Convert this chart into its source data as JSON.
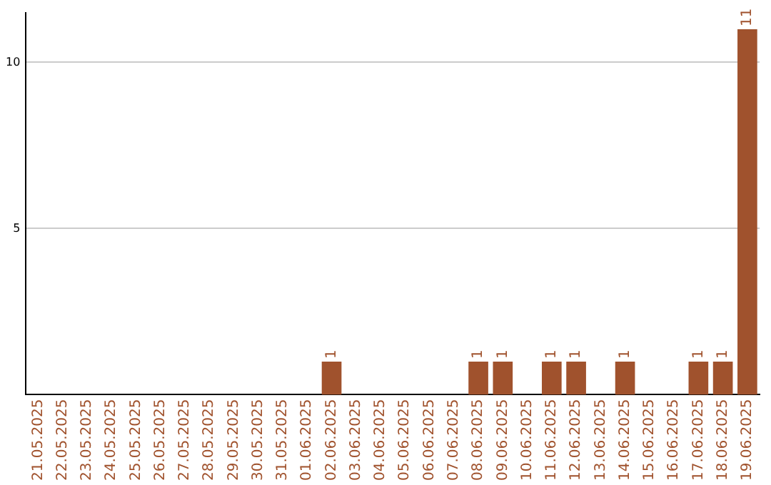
{
  "chart_data": {
    "type": "bar",
    "categories": [
      "21.05.2025",
      "22.05.2025",
      "23.05.2025",
      "24.05.2025",
      "25.05.2025",
      "26.05.2025",
      "27.05.2025",
      "28.05.2025",
      "29.05.2025",
      "30.05.2025",
      "31.05.2025",
      "01.06.2025",
      "02.06.2025",
      "03.06.2025",
      "04.06.2025",
      "05.06.2025",
      "06.06.2025",
      "07.06.2025",
      "08.06.2025",
      "09.06.2025",
      "10.06.2025",
      "11.06.2025",
      "12.06.2025",
      "13.06.2025",
      "14.06.2025",
      "15.06.2025",
      "16.06.2025",
      "17.06.2025",
      "18.06.2025",
      "19.06.2025"
    ],
    "values": [
      null,
      null,
      null,
      null,
      null,
      null,
      null,
      null,
      null,
      null,
      null,
      null,
      1,
      null,
      null,
      null,
      null,
      null,
      1,
      1,
      null,
      1,
      1,
      null,
      1,
      null,
      null,
      1,
      1,
      11
    ],
    "value_labels": [
      null,
      null,
      null,
      null,
      null,
      null,
      null,
      null,
      null,
      null,
      null,
      null,
      "1",
      null,
      null,
      null,
      null,
      null,
      "1",
      "1",
      null,
      "1",
      "1",
      null,
      "1",
      null,
      null,
      "1",
      "1",
      "11"
    ],
    "color": "#a0522d",
    "ylim": [
      0,
      11.5
    ],
    "yticks": [
      5,
      10
    ],
    "grid": "y",
    "legend": false
  }
}
